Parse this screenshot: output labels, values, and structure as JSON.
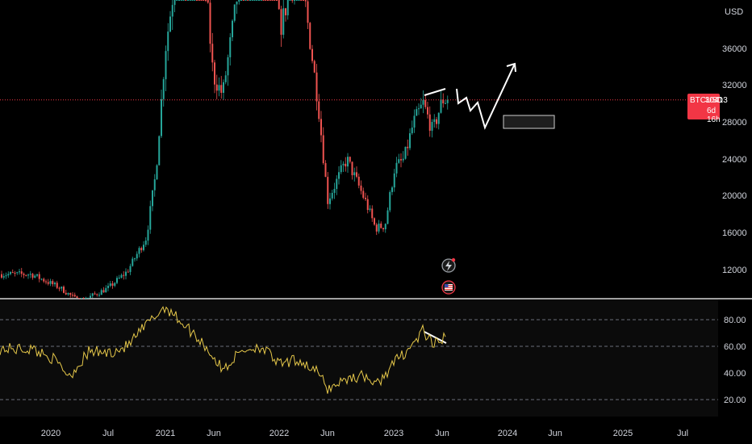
{
  "chart_data": [
    {
      "type": "candlestick",
      "symbol": "BTCUSD",
      "currency_label": "USD",
      "ylim": [
        9000,
        42000
      ],
      "y_ticks": [
        12000,
        16000,
        20000,
        24000,
        28000,
        32000,
        36000
      ],
      "last_price": 30413,
      "last_price_label": "30413",
      "countdown": "6d 16h",
      "x_ticks": [
        "2020",
        "Jul",
        "2021",
        "Jun",
        "2022",
        "Jun",
        "2023",
        "Jun",
        "2024",
        "Jun",
        "2025",
        "Jul"
      ],
      "approx_close_path": [
        {
          "date": "2019-11",
          "close": 11500
        },
        {
          "date": "2020-02",
          "close": 10000
        },
        {
          "date": "2020-04",
          "close": 8500
        },
        {
          "date": "2020-07",
          "close": 10000
        },
        {
          "date": "2020-09",
          "close": 11800
        },
        {
          "date": "2020-11",
          "close": 15500
        },
        {
          "date": "2020-12",
          "close": 22500
        },
        {
          "date": "2021-01",
          "close": 36000
        },
        {
          "date": "2021-04",
          "close": 58000
        },
        {
          "date": "2021-06",
          "close": 33000
        },
        {
          "date": "2021-07",
          "close": 31000
        },
        {
          "date": "2021-09",
          "close": 45000
        },
        {
          "date": "2021-11",
          "close": 60000
        },
        {
          "date": "2022-01",
          "close": 38000
        },
        {
          "date": "2022-03",
          "close": 46000
        },
        {
          "date": "2022-05",
          "close": 30000
        },
        {
          "date": "2022-06",
          "close": 19500
        },
        {
          "date": "2022-08",
          "close": 24000
        },
        {
          "date": "2022-10",
          "close": 19300
        },
        {
          "date": "2022-11",
          "close": 16500
        },
        {
          "date": "2022-12",
          "close": 16800
        },
        {
          "date": "2023-01",
          "close": 23000
        },
        {
          "date": "2023-02",
          "close": 24000
        },
        {
          "date": "2023-03",
          "close": 28000
        },
        {
          "date": "2023-04",
          "close": 30000
        },
        {
          "date": "2023-05",
          "close": 27000
        },
        {
          "date": "2023-06",
          "close": 30413
        }
      ]
    },
    {
      "type": "line",
      "name": "RSI",
      "ylim": [
        15,
        100
      ],
      "y_ticks": [
        "80.00",
        "60.00",
        "40.00",
        "20.00"
      ],
      "levels": [
        80,
        60,
        20
      ],
      "series_color": "#e6c84a",
      "approx_values": [
        {
          "date": "2019-11",
          "value": 58
        },
        {
          "date": "2020-01",
          "value": 52
        },
        {
          "date": "2020-03",
          "value": 38
        },
        {
          "date": "2020-05",
          "value": 56
        },
        {
          "date": "2020-07",
          "value": 55
        },
        {
          "date": "2020-09",
          "value": 60
        },
        {
          "date": "2020-11",
          "value": 76
        },
        {
          "date": "2021-01",
          "value": 90
        },
        {
          "date": "2021-03",
          "value": 76
        },
        {
          "date": "2021-05",
          "value": 62
        },
        {
          "date": "2021-07",
          "value": 42
        },
        {
          "date": "2021-09",
          "value": 57
        },
        {
          "date": "2021-11",
          "value": 60
        },
        {
          "date": "2022-01",
          "value": 46
        },
        {
          "date": "2022-03",
          "value": 50
        },
        {
          "date": "2022-05",
          "value": 40
        },
        {
          "date": "2022-06",
          "value": 28
        },
        {
          "date": "2022-08",
          "value": 36
        },
        {
          "date": "2022-10",
          "value": 38
        },
        {
          "date": "2022-11",
          "value": 30
        },
        {
          "date": "2023-01",
          "value": 48
        },
        {
          "date": "2023-03",
          "value": 62
        },
        {
          "date": "2023-04",
          "value": 72
        },
        {
          "date": "2023-05",
          "value": 60
        },
        {
          "date": "2023-06",
          "value": 66
        }
      ]
    }
  ],
  "colors": {
    "up": "#26a69a",
    "down": "#ef5350",
    "price_line": "#f23645",
    "rsi": "#e6c84a",
    "drawing": "#ffffff"
  },
  "icons": [
    "lightning-event-icon",
    "us-flag-event-icon"
  ]
}
